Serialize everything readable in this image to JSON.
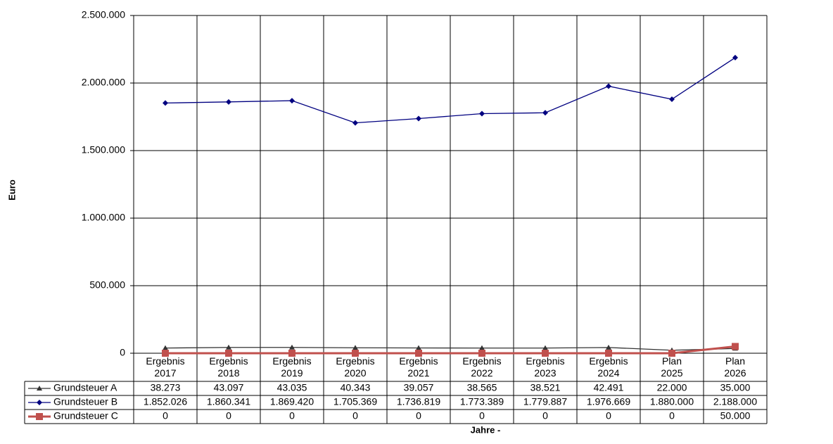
{
  "chart_data": {
    "type": "line",
    "y_label": "Euro",
    "x_label": "Jahre -",
    "categories": [
      "Ergebnis 2017",
      "Ergebnis 2018",
      "Ergebnis 2019",
      "Ergebnis 2020",
      "Ergebnis 2021",
      "Ergebnis 2022",
      "Ergebnis 2023",
      "Ergebnis 2024",
      "Plan 2025",
      "Plan 2026"
    ],
    "series": [
      {
        "name": "Grundsteuer A",
        "color": "#333333",
        "marker": "triangle",
        "values": [
          38273,
          43097,
          43035,
          40343,
          39057,
          38565,
          38521,
          42491,
          22000,
          35000
        ],
        "value_labels": [
          "38.273",
          "43.097",
          "43.035",
          "40.343",
          "39.057",
          "38.565",
          "38.521",
          "42.491",
          "22.000",
          "35.000"
        ]
      },
      {
        "name": "Grundsteuer B",
        "color": "#000080",
        "marker": "diamond",
        "values": [
          1852026,
          1860341,
          1869420,
          1705369,
          1736819,
          1773389,
          1779887,
          1976669,
          1880000,
          2188000
        ],
        "value_labels": [
          "1.852.026",
          "1.860.341",
          "1.869.420",
          "1.705.369",
          "1.736.819",
          "1.773.389",
          "1.779.887",
          "1.976.669",
          "1.880.000",
          "2.188.000"
        ]
      },
      {
        "name": "Grundsteuer C",
        "color": "#c0504d",
        "marker": "square",
        "values": [
          0,
          0,
          0,
          0,
          0,
          0,
          0,
          0,
          0,
          50000
        ],
        "value_labels": [
          "0",
          "0",
          "0",
          "0",
          "0",
          "0",
          "0",
          "0",
          "0",
          "50.000"
        ]
      }
    ],
    "ylim": [
      0,
      2500000
    ],
    "yticks": [
      0,
      {
        "value": 500000,
        "label": "500.000"
      },
      {
        "value": 1000000,
        "label": "1.000.000"
      },
      {
        "value": 1500000,
        "label": "1.500.000"
      },
      {
        "value": 2000000,
        "label": "2.000.000"
      },
      {
        "value": 2500000,
        "label": "2.500.000"
      }
    ],
    "grid": true
  }
}
